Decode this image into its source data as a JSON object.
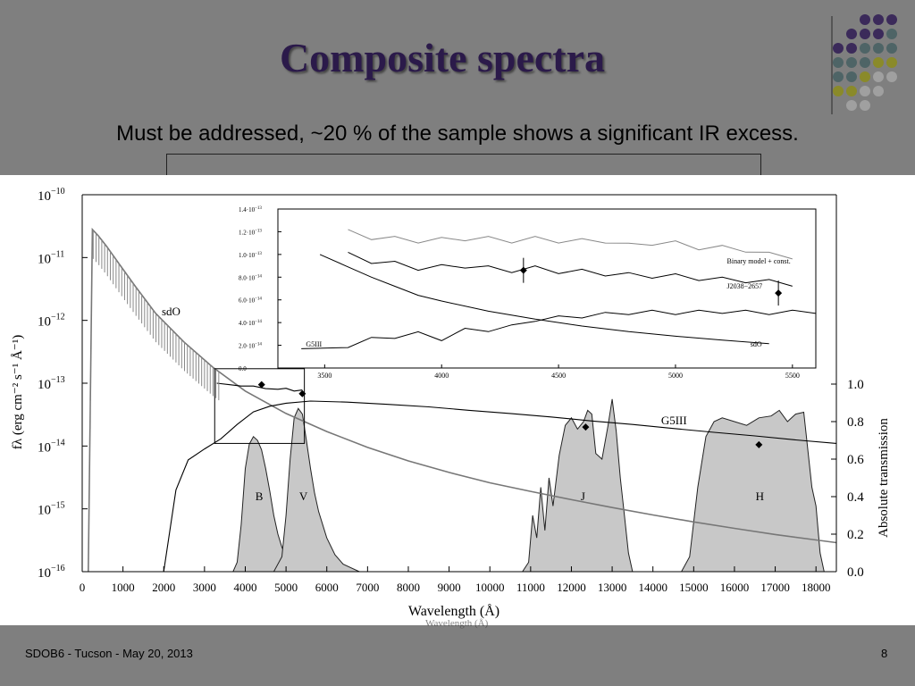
{
  "slide": {
    "title": "Composite spectra",
    "subtitle": "Must be addressed, ~20 % of the sample shows a significant IR excess.",
    "footer_left": "SDOB6 - Tucson - May 20, 2013",
    "page_number": "8",
    "ghost_caption": "Wavelength (Å)",
    "accent_colors": {
      "purple": "#3b2a5a",
      "teal": "#4e6466",
      "olive": "#8a8a2a",
      "gray": "#a0a0a0"
    }
  },
  "chart_data": [
    {
      "type": "line",
      "xlabel": "Wavelength (Å)",
      "ylabel": "fλ (erg cm⁻² s⁻¹ Å⁻¹)",
      "y2label": "Absolute transmission",
      "xlim": [
        0,
        18500
      ],
      "ylim": [
        1e-16,
        1e-10
      ],
      "yscale": "log",
      "y2lim": [
        0,
        1.0
      ],
      "x_ticks": [
        "0",
        "1000",
        "2000",
        "3000",
        "4000",
        "5000",
        "6000",
        "7000",
        "8000",
        "9000",
        "10000",
        "11000",
        "12000",
        "13000",
        "14000",
        "15000",
        "16000",
        "17000",
        "18000"
      ],
      "x_tick_values": [
        0,
        1000,
        2000,
        3000,
        4000,
        5000,
        6000,
        7000,
        8000,
        9000,
        10000,
        11000,
        12000,
        13000,
        14000,
        15000,
        16000,
        17000,
        18000
      ],
      "y_ticks": [
        {
          "base": "10",
          "exp": "−10",
          "value": 1e-10
        },
        {
          "base": "10",
          "exp": "−11",
          "value": 1e-11
        },
        {
          "base": "10",
          "exp": "−12",
          "value": 1e-12
        },
        {
          "base": "10",
          "exp": "−13",
          "value": 1e-13
        },
        {
          "base": "10",
          "exp": "−14",
          "value": 1e-14
        },
        {
          "base": "10",
          "exp": "−15",
          "value": 1e-15
        },
        {
          "base": "10",
          "exp": "−16",
          "value": 1e-16
        }
      ],
      "y2_ticks": [
        "0.0",
        "0.2",
        "0.4",
        "0.6",
        "0.8",
        "1.0"
      ],
      "y2_tick_values": [
        0,
        0.2,
        0.4,
        0.6,
        0.8,
        1.0
      ],
      "series": [
        {
          "name": "sdO",
          "color": "#777777",
          "x": [
            150,
            250,
            400,
            600,
            900,
            1300,
            1800,
            2500,
            3200,
            4000,
            5000,
            6000,
            7000,
            8000,
            9000,
            10000,
            11000,
            12000,
            13000,
            14000,
            15000,
            16000,
            17000,
            18000,
            18500
          ],
          "y": [
            1e-16,
            2.8e-11,
            2.2e-11,
            1.5e-11,
            8e-12,
            3.5e-12,
            1.3e-12,
            4.5e-13,
            1.8e-13,
            7.5e-14,
            3.3e-14,
            1.7e-14,
            9.5e-15,
            5.8e-15,
            3.8e-15,
            2.6e-15,
            1.9e-15,
            1.4e-15,
            1.05e-15,
            8e-16,
            6.2e-16,
            4.9e-16,
            3.9e-16,
            3.2e-16,
            2.9e-16
          ]
        },
        {
          "name": "G5III",
          "color": "#000000",
          "x": [
            2000,
            2300,
            2600,
            3000,
            3400,
            3800,
            4200,
            4600,
            5000,
            5600,
            6500,
            7500,
            8500,
            9500,
            10500,
            11500,
            12500,
            13500,
            14500,
            15500,
            16500,
            17500,
            18500
          ],
          "y": [
            1e-16,
            2e-15,
            6e-15,
            9e-15,
            1.3e-14,
            2.2e-14,
            3.5e-14,
            4.3e-14,
            4.8e-14,
            5.2e-14,
            5e-14,
            4.6e-14,
            4.2e-14,
            3.7e-14,
            3.3e-14,
            2.9e-14,
            2.5e-14,
            2.2e-14,
            1.9e-14,
            1.65e-14,
            1.45e-14,
            1.25e-14,
            1.1e-14
          ]
        },
        {
          "name": "Binary model + const.",
          "color": "#000000",
          "x": [
            3300,
            3600,
            3900,
            4200,
            4500,
            4800,
            5000,
            5200,
            5400
          ],
          "y": [
            1e-13,
            9.5e-14,
            9e-14,
            9e-14,
            8.2e-14,
            8e-14,
            8.3e-14,
            7.5e-14,
            7.8e-14
          ]
        }
      ],
      "photometry": [
        {
          "x": 4400,
          "y": 9.5e-14
        },
        {
          "x": 5400,
          "y": 6.8e-14
        },
        {
          "x": 12350,
          "y": 2e-14
        },
        {
          "x": 16600,
          "y": 1.05e-14
        }
      ],
      "filters": [
        {
          "name": "B",
          "x": [
            3700,
            3800,
            3900,
            4000,
            4100,
            4200,
            4300,
            4400,
            4500,
            4600,
            4700,
            4800,
            4900,
            5000,
            5200,
            5500
          ],
          "t": [
            0,
            0.05,
            0.25,
            0.55,
            0.68,
            0.72,
            0.7,
            0.65,
            0.55,
            0.43,
            0.3,
            0.2,
            0.13,
            0.08,
            0.03,
            0
          ]
        },
        {
          "name": "V",
          "x": [
            4700,
            4900,
            5000,
            5100,
            5200,
            5300,
            5400,
            5500,
            5600,
            5700,
            5800,
            6000,
            6200,
            6400,
            6800
          ],
          "t": [
            0,
            0.08,
            0.3,
            0.6,
            0.82,
            0.87,
            0.84,
            0.7,
            0.55,
            0.42,
            0.32,
            0.18,
            0.09,
            0.04,
            0
          ]
        },
        {
          "name": "J",
          "x": [
            10800,
            10950,
            11050,
            11150,
            11250,
            11350,
            11450,
            11550,
            11700,
            11850,
            12000,
            12150,
            12300,
            12400,
            12500,
            12600,
            12750,
            12900,
            13000,
            13100,
            13200,
            13300,
            13400,
            13500
          ],
          "t": [
            0,
            0.05,
            0.3,
            0.18,
            0.45,
            0.22,
            0.5,
            0.35,
            0.62,
            0.78,
            0.82,
            0.76,
            0.8,
            0.86,
            0.84,
            0.63,
            0.6,
            0.78,
            0.92,
            0.75,
            0.5,
            0.3,
            0.1,
            0
          ]
        },
        {
          "name": "H",
          "x": [
            14700,
            14900,
            15100,
            15300,
            15500,
            15700,
            16000,
            16300,
            16600,
            16900,
            17100,
            17300,
            17500,
            17700,
            17900,
            18000,
            18100,
            18200
          ],
          "t": [
            0,
            0.08,
            0.45,
            0.72,
            0.8,
            0.82,
            0.8,
            0.78,
            0.82,
            0.83,
            0.86,
            0.8,
            0.84,
            0.85,
            0.45,
            0.35,
            0.1,
            0
          ]
        }
      ],
      "labels": [
        "sdO",
        "G5III",
        "B",
        "V",
        "J",
        "H"
      ]
    },
    {
      "type": "line",
      "title": "",
      "xlim": [
        3300,
        5600
      ],
      "ylim": [
        0,
        1.4e-13
      ],
      "x_ticks": [
        "3500",
        "4000",
        "4500",
        "5000",
        "5500"
      ],
      "x_tick_values": [
        3500,
        4000,
        4500,
        5000,
        5500
      ],
      "y_ticks": [
        {
          "label": "0.0",
          "value": 0
        },
        {
          "label": "2.0·10",
          "exp": "−14",
          "value": 2e-14
        },
        {
          "label": "4.0·10",
          "exp": "−14",
          "value": 4e-14
        },
        {
          "label": "6.0·10",
          "exp": "−14",
          "value": 6e-14
        },
        {
          "label": "8.0·10",
          "exp": "−14",
          "value": 8e-14
        },
        {
          "label": "1.0·10",
          "exp": "−13",
          "value": 1e-13
        },
        {
          "label": "1.2·10",
          "exp": "−13",
          "value": 1.2e-13
        },
        {
          "label": "1.4·10",
          "exp": "−13",
          "value": 1.4e-13
        }
      ],
      "series": [
        {
          "name": "Binary model + const.",
          "color": "#888888",
          "x": [
            3600,
            3700,
            3800,
            3900,
            4000,
            4100,
            4200,
            4300,
            4400,
            4500,
            4600,
            4700,
            4800,
            4900,
            5000,
            5100,
            5200,
            5300,
            5400,
            5500
          ],
          "y": [
            1.2e-13,
            1.15e-13,
            1.14e-13,
            1.12e-13,
            1.13e-13,
            1.14e-13,
            1.14e-13,
            1.12e-13,
            1.14e-13,
            1.12e-13,
            1.12e-13,
            1.12e-13,
            1.08e-13,
            1.1e-13,
            1.1e-13,
            1.06e-13,
            1.06e-13,
            1.04e-13,
            1e-13,
            9.8e-14
          ]
        },
        {
          "name": "J2038−2657",
          "color": "#000000",
          "x": [
            3600,
            3700,
            3800,
            3900,
            4000,
            4100,
            4200,
            4300,
            4400,
            4500,
            4600,
            4700,
            4800,
            4900,
            5000,
            5100,
            5200,
            5300,
            5400,
            5500
          ],
          "y": [
            1e-13,
            9.4e-14,
            9.2e-14,
            8.8e-14,
            8.9e-14,
            9e-14,
            8.8e-14,
            8.6e-14,
            8.8e-14,
            8.5e-14,
            8.5e-14,
            8.3e-14,
            8.2e-14,
            8.1e-14,
            8.1e-14,
            7.9e-14,
            7.8e-14,
            7.7e-14,
            7.6e-14,
            7.4e-14
          ]
        },
        {
          "name": "sdO",
          "color": "#000000",
          "x": [
            3480,
            3600,
            3700,
            3800,
            3900,
            4000,
            4200,
            4400,
            4600,
            4800,
            5000,
            5200,
            5400
          ],
          "y": [
            1e-13,
            8.9e-14,
            8e-14,
            7.2e-14,
            6.4e-14,
            5.9e-14,
            5e-14,
            4.3e-14,
            3.7e-14,
            3.2e-14,
            2.8e-14,
            2.45e-14,
            2.15e-14
          ]
        },
        {
          "name": "G5III",
          "color": "#000000",
          "x": [
            3400,
            3600,
            3700,
            3800,
            3900,
            4000,
            4100,
            4200,
            4300,
            4400,
            4500,
            4600,
            4700,
            4800,
            4900,
            5000,
            5100,
            5200,
            5300,
            5400,
            5500,
            5600
          ],
          "y": [
            1.5e-14,
            2e-14,
            2.5e-14,
            2.8e-14,
            3e-14,
            2.6e-14,
            3.3e-14,
            3.4e-14,
            3.6e-14,
            4.3e-14,
            4.4e-14,
            4.6e-14,
            4.7e-14,
            4.9e-14,
            4.9e-14,
            4.9e-14,
            4.9e-14,
            5e-14,
            4.9e-14,
            4.9e-14,
            4.9e-14,
            5e-14
          ]
        }
      ],
      "photometry": [
        {
          "x": 4350,
          "y": 8.6e-14
        },
        {
          "x": 5440,
          "y": 6.6e-14
        }
      ],
      "labels": [
        "Binary model + const.",
        "J2038−2657",
        "sdO",
        "G5III"
      ]
    }
  ]
}
